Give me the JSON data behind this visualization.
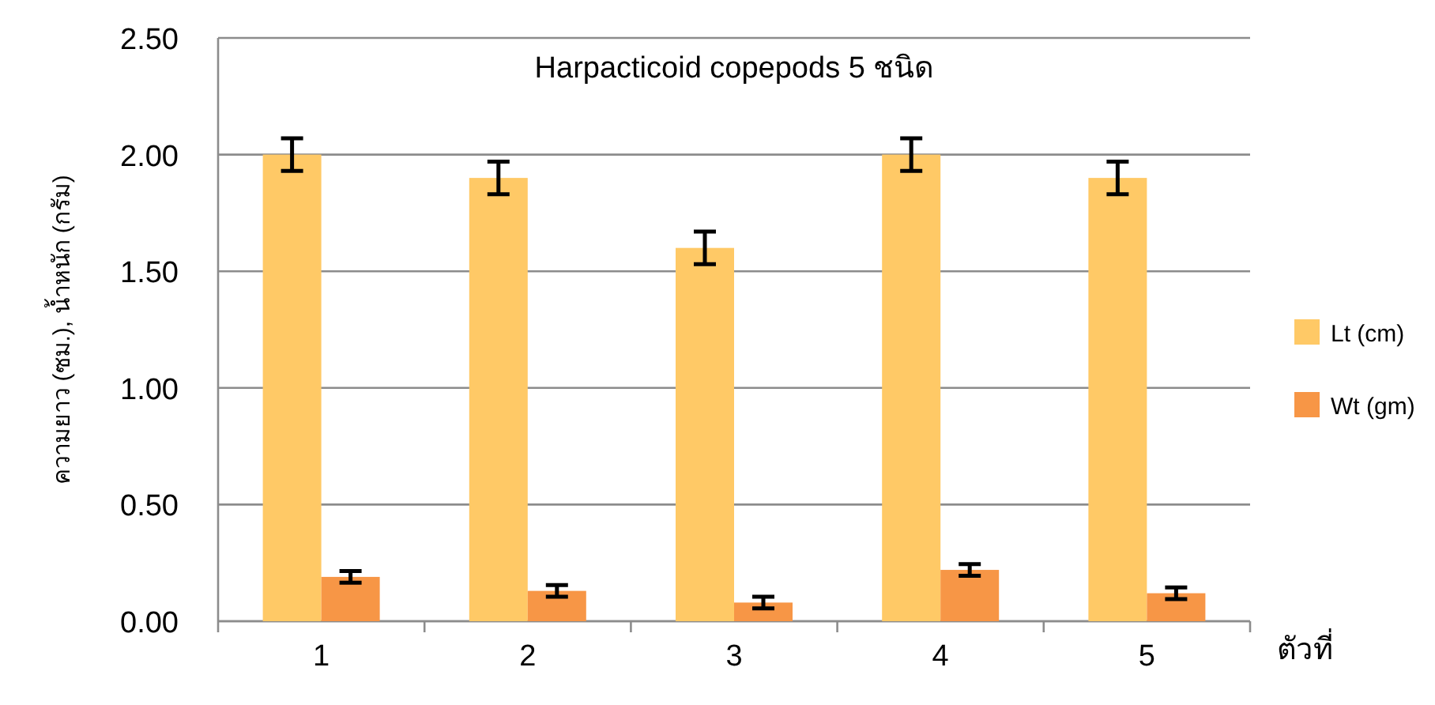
{
  "chart_data": {
    "type": "bar",
    "title": "Harpacticoid copepods 5 ชนิด",
    "xlabel": "ตัวที่",
    "ylabel": "ความยาว (ซม.), น้ำหนัก (กรัม)",
    "categories": [
      "1",
      "2",
      "3",
      "4",
      "5"
    ],
    "series": [
      {
        "name": "Lt (cm)",
        "color": "#ffc966",
        "values": [
          2.0,
          1.9,
          1.6,
          2.0,
          1.9
        ],
        "errors": [
          0.07,
          0.07,
          0.07,
          0.07,
          0.07
        ]
      },
      {
        "name": "Wt (gm)",
        "color": "#f79646",
        "values": [
          0.19,
          0.13,
          0.08,
          0.22,
          0.12
        ],
        "errors": [
          0.025,
          0.025,
          0.025,
          0.025,
          0.025
        ]
      }
    ],
    "ylim": [
      0,
      2.5
    ],
    "yticks": [
      {
        "value": 0,
        "label": "0.00"
      },
      {
        "value": 0.5,
        "label": "0.50"
      },
      {
        "value": 1,
        "label": "1.00"
      },
      {
        "value": 1.5,
        "label": "1.50"
      },
      {
        "value": 2,
        "label": "2.00"
      },
      {
        "value": 2.5,
        "label": "2.50"
      }
    ],
    "grid": "y",
    "legend": "right"
  }
}
